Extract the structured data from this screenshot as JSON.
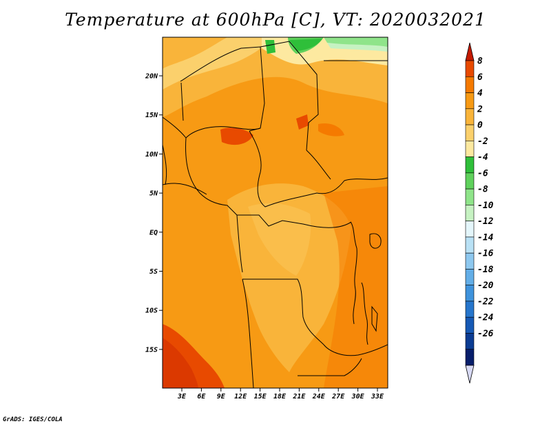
{
  "title": "Temperature at 600hPa [C], VT: 2020032021",
  "credit": "GrADS: IGES/COLA",
  "map": {
    "lat_labels": [
      "20N",
      "15N",
      "10N",
      "5N",
      "EQ",
      "5S",
      "10S",
      "15S"
    ],
    "lon_labels": [
      "3E",
      "6E",
      "9E",
      "12E",
      "15E",
      "18E",
      "21E",
      "24E",
      "27E",
      "30E",
      "33E"
    ]
  },
  "colorbar": {
    "labels": [
      "8",
      "6",
      "4",
      "2",
      "0",
      "-2",
      "-4",
      "-6",
      "-8",
      "-10",
      "-12",
      "-14",
      "-16",
      "-18",
      "-20",
      "-22",
      "-24",
      "-26"
    ],
    "colors": [
      "#c41a00",
      "#e84a00",
      "#f57a00",
      "#f79a14",
      "#f9b43a",
      "#fbd06c",
      "#fde9a0",
      "#2fbf3a",
      "#5fd15c",
      "#8fe48a",
      "#c6f2c2",
      "#e4f6fb",
      "#b9e1f5",
      "#8ec8ef",
      "#63aee7",
      "#3f93dc",
      "#2676cc",
      "#1659b5",
      "#0b3c93",
      "#071e6b",
      "#d8daf5"
    ]
  }
}
